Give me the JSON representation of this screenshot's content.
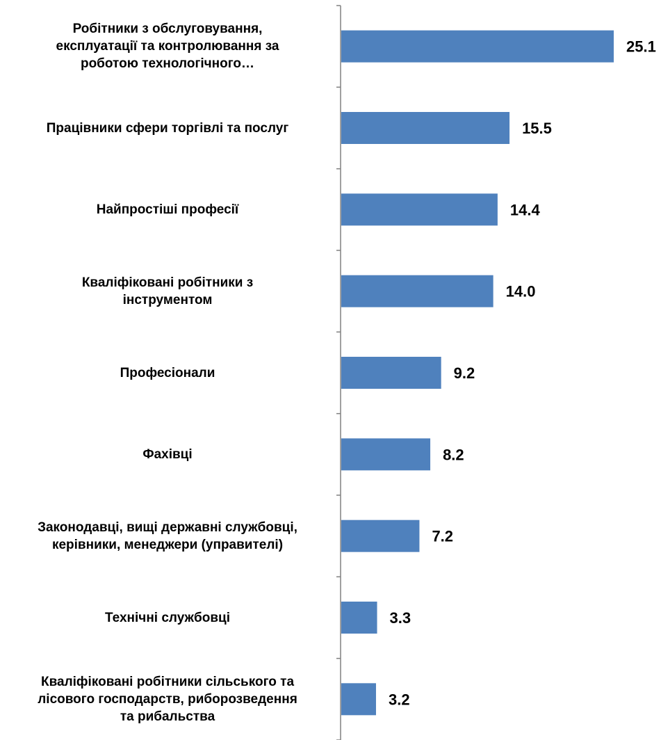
{
  "chart_data": {
    "type": "bar",
    "orientation": "horizontal",
    "categories": [
      "Робітники з обслуговування, експлуатації та контролювання за роботою технологічного…",
      "Працівники сфери торгівлі та послуг",
      "Найпростіші професії",
      "Кваліфіковані робітники з інструментом",
      "Професіонали",
      "Фахівці",
      "Законодавці, вищі державні службовці, керівники, менеджери (управителі)",
      "Технічні службовці",
      "Кваліфіковані робітники сільського та лісового господарств, риборозведення та рибальства"
    ],
    "values": [
      25.1,
      15.5,
      14.4,
      14.0,
      9.2,
      8.2,
      7.2,
      3.3,
      3.2
    ],
    "value_labels": [
      "25.1",
      "15.5",
      "14.4",
      "14.0",
      "9.2",
      "8.2",
      "7.2",
      "3.3",
      "3.2"
    ],
    "xlim": [
      0,
      25.1
    ],
    "bar_color": "#4F81BD",
    "grid": false,
    "legend": "none",
    "title": "",
    "xlabel": "",
    "ylabel": ""
  }
}
